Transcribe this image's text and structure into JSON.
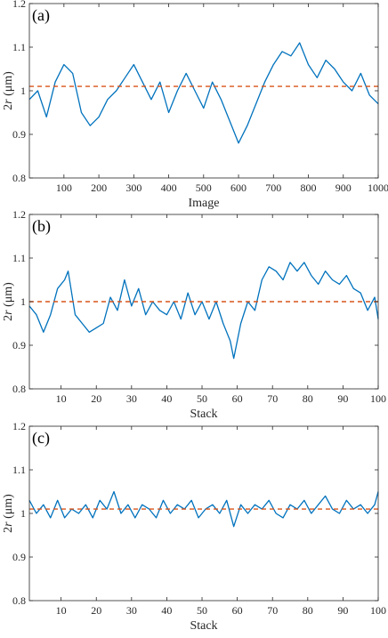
{
  "chart_data": [
    {
      "type": "line",
      "panel_label": "(a)",
      "xlabel": "Image",
      "ylabel_italic": "r",
      "ylabel_pre": "2",
      "ylabel_unit": " (μm)",
      "xlim": [
        1,
        1000
      ],
      "ylim": [
        0.8,
        1.2
      ],
      "xticks": [
        100,
        200,
        300,
        400,
        500,
        600,
        700,
        800,
        900,
        1000
      ],
      "yticks": [
        0.8,
        0.9,
        1,
        1.1,
        1.2
      ],
      "ytick_labels": [
        "0.8",
        "0.9",
        "1",
        "1.1",
        "1.2"
      ],
      "series": [
        {
          "color": "#0072BD",
          "x": [
            1,
            25,
            50,
            75,
            100,
            125,
            150,
            175,
            200,
            225,
            250,
            275,
            300,
            325,
            350,
            375,
            400,
            425,
            450,
            475,
            500,
            525,
            550,
            575,
            600,
            625,
            650,
            675,
            700,
            725,
            750,
            775,
            800,
            825,
            850,
            875,
            900,
            925,
            950,
            975,
            1000
          ],
          "y": [
            0.98,
            1.0,
            0.94,
            1.02,
            1.06,
            1.04,
            0.95,
            0.92,
            0.94,
            0.98,
            1.0,
            1.03,
            1.06,
            1.02,
            0.98,
            1.02,
            0.95,
            1.0,
            1.04,
            1.0,
            0.96,
            1.02,
            0.98,
            0.93,
            0.88,
            0.92,
            0.97,
            1.02,
            1.06,
            1.09,
            1.08,
            1.11,
            1.06,
            1.03,
            1.07,
            1.05,
            1.02,
            1.0,
            1.04,
            0.99,
            0.97
          ]
        },
        {
          "color": "#D95319",
          "dashed": true,
          "x": [
            1,
            1000
          ],
          "y": [
            1.01,
            1.01
          ]
        }
      ]
    },
    {
      "type": "line",
      "panel_label": "(b)",
      "xlabel": "Stack",
      "ylabel_italic": "r",
      "ylabel_pre": "2",
      "ylabel_unit": " (μm)",
      "xlim": [
        1,
        100
      ],
      "ylim": [
        0.8,
        1.2
      ],
      "xticks": [
        10,
        20,
        30,
        40,
        50,
        60,
        70,
        80,
        90,
        100
      ],
      "yticks": [
        0.8,
        0.9,
        1,
        1.1,
        1.2
      ],
      "ytick_labels": [
        "0.8",
        "0.9",
        "1",
        "1.1",
        "1.2"
      ],
      "series": [
        {
          "color": "#0072BD",
          "x": [
            1,
            3,
            5,
            7,
            9,
            11,
            12,
            14,
            16,
            18,
            20,
            22,
            24,
            26,
            28,
            30,
            32,
            34,
            36,
            38,
            40,
            42,
            44,
            46,
            48,
            50,
            52,
            54,
            56,
            58,
            59,
            61,
            63,
            65,
            67,
            69,
            71,
            73,
            75,
            77,
            79,
            81,
            83,
            85,
            87,
            89,
            91,
            93,
            95,
            97,
            99,
            100
          ],
          "y": [
            0.99,
            0.97,
            0.93,
            0.97,
            1.03,
            1.05,
            1.07,
            0.97,
            0.95,
            0.93,
            0.94,
            0.95,
            1.01,
            0.98,
            1.05,
            0.99,
            1.03,
            0.97,
            1.0,
            0.98,
            0.97,
            1.0,
            0.96,
            1.02,
            0.97,
            1.0,
            0.96,
            1.0,
            0.95,
            0.91,
            0.87,
            0.95,
            1.0,
            0.98,
            1.05,
            1.08,
            1.07,
            1.05,
            1.09,
            1.07,
            1.09,
            1.06,
            1.04,
            1.07,
            1.05,
            1.04,
            1.06,
            1.03,
            1.02,
            0.98,
            1.01,
            0.96
          ]
        },
        {
          "color": "#D95319",
          "dashed": true,
          "x": [
            1,
            100
          ],
          "y": [
            1.0,
            1.0
          ]
        }
      ]
    },
    {
      "type": "line",
      "panel_label": "(c)",
      "xlabel": "Stack",
      "ylabel_italic": "r",
      "ylabel_pre": "2",
      "ylabel_unit": " (μm)",
      "xlim": [
        1,
        100
      ],
      "ylim": [
        0.8,
        1.2
      ],
      "xticks": [
        10,
        20,
        30,
        40,
        50,
        60,
        70,
        80,
        90,
        100
      ],
      "yticks": [
        0.8,
        0.9,
        1,
        1.1,
        1.2
      ],
      "ytick_labels": [
        "0.8",
        "0.9",
        "1",
        "1.1",
        "1.2"
      ],
      "series": [
        {
          "color": "#0072BD",
          "x": [
            1,
            3,
            5,
            7,
            9,
            11,
            13,
            15,
            17,
            19,
            21,
            23,
            25,
            27,
            29,
            31,
            33,
            35,
            37,
            39,
            41,
            43,
            45,
            47,
            49,
            51,
            53,
            55,
            57,
            59,
            61,
            63,
            65,
            67,
            69,
            71,
            73,
            75,
            77,
            79,
            81,
            83,
            85,
            87,
            89,
            91,
            93,
            95,
            97,
            99,
            100
          ],
          "y": [
            1.03,
            1.0,
            1.02,
            0.99,
            1.03,
            0.99,
            1.01,
            1.0,
            1.02,
            0.99,
            1.03,
            1.01,
            1.05,
            1.0,
            1.02,
            0.99,
            1.02,
            1.01,
            0.99,
            1.03,
            1.0,
            1.02,
            1.01,
            1.03,
            0.99,
            1.01,
            1.02,
            1.0,
            1.03,
            0.97,
            1.02,
            1.0,
            1.02,
            1.01,
            1.03,
            1.0,
            0.99,
            1.02,
            1.01,
            1.03,
            1.0,
            1.02,
            1.04,
            1.01,
            1.0,
            1.03,
            1.01,
            1.02,
            1.0,
            1.02,
            1.05
          ]
        },
        {
          "color": "#D95319",
          "dashed": true,
          "x": [
            1,
            100
          ],
          "y": [
            1.01,
            1.01
          ]
        }
      ]
    }
  ]
}
